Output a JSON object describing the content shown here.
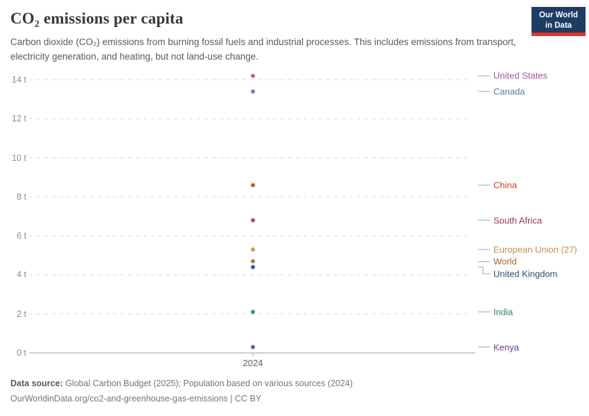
{
  "header": {
    "title": "CO₂ emissions per capita",
    "logo_line1": "Our World",
    "logo_line2": "in Data",
    "logo_bg": "#1d3d63",
    "logo_stripe": "#dc352c"
  },
  "subtitle": "Carbon dioxide (CO₂) emissions from burning fossil fuels and industrial processes. This includes emissions from transport, electricity generation, and heating, but not land-use change.",
  "chart_data": {
    "type": "scatter",
    "title": "CO₂ emissions per capita",
    "xlabel": "",
    "ylabel": "",
    "unit": "t",
    "x": [
      2024
    ],
    "x_tick_label": "2024",
    "ylim": [
      0,
      14
    ],
    "ytick_step": 2,
    "ytick_labels": [
      "0 t",
      "2 t",
      "4 t",
      "6 t",
      "8 t",
      "10 t",
      "12 t",
      "14 t"
    ],
    "grid": true,
    "gridline_color": "#dcdcdc",
    "axis_line_color": "#9e9e9e",
    "legend_position": "right-labels",
    "series": [
      {
        "name": "United States",
        "values": [
          14.2
        ],
        "color": "#a2559c"
      },
      {
        "name": "Canada",
        "values": [
          13.4
        ],
        "color": "#577ca9"
      },
      {
        "name": "China",
        "values": [
          8.6
        ],
        "color": "#ca4327"
      },
      {
        "name": "South Africa",
        "values": [
          6.8
        ],
        "color": "#a0344b"
      },
      {
        "name": "European Union (27)",
        "values": [
          5.3
        ],
        "color": "#be8e54"
      },
      {
        "name": "World",
        "values": [
          4.7
        ],
        "color": "#b16628"
      },
      {
        "name": "United Kingdom",
        "values": [
          4.4
        ],
        "color": "#2d4b77"
      },
      {
        "name": "India",
        "values": [
          2.1
        ],
        "color": "#2c8465"
      },
      {
        "name": "Kenya",
        "values": [
          0.3
        ],
        "color": "#6d3e91"
      }
    ]
  },
  "footer": {
    "source_label": "Data source:",
    "source_text": " Global Carbon Budget (2025); Population based on various sources (2024)",
    "note_text": "OurWorldinData.org/co2-and-greenhouse-gas-emissions | CC BY"
  }
}
